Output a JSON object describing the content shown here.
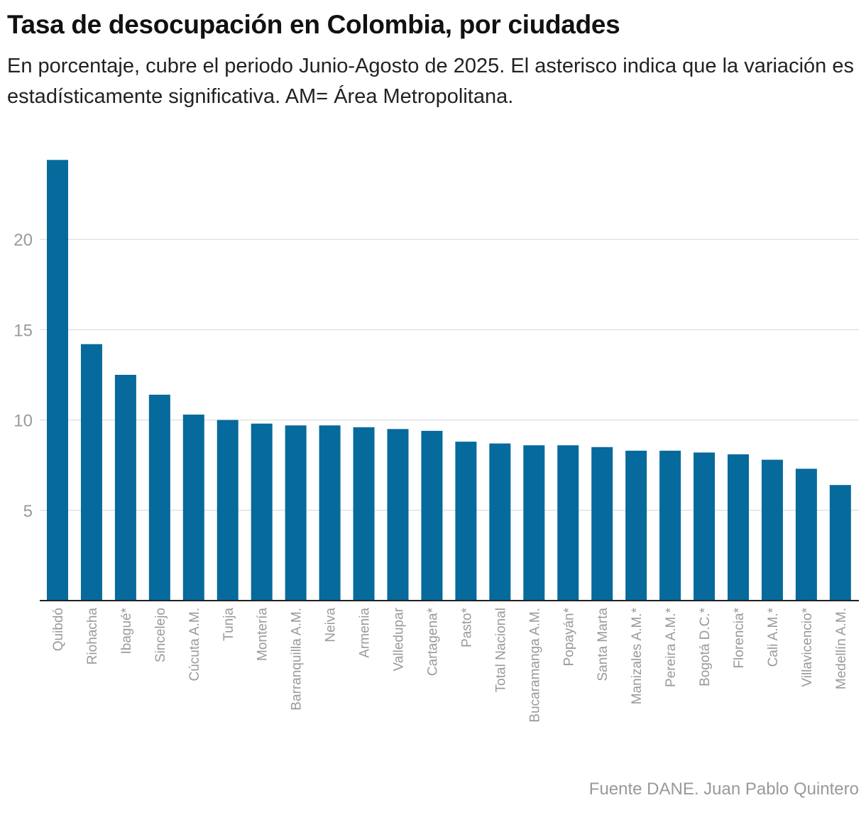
{
  "title": "Tasa de desocupación en Colombia, por ciudades",
  "subtitle": "En porcentaje, cubre el periodo Junio-Agosto de 2025. El asterisco indica que la variación es estadísticamente significativa. AM= Área Metropolitana.",
  "source": "Fuente DANE. Juan Pablo Quintero",
  "colors": {
    "bar": "#066a9c",
    "grid": "#e3e3e3",
    "axis": "#222222",
    "tick_text": "#9a9a9a"
  },
  "chart_data": {
    "type": "bar",
    "title": "Tasa de desocupación en Colombia, por ciudades",
    "xlabel": "",
    "ylabel": "",
    "ylim": [
      0,
      25
    ],
    "yticks": [
      5,
      10,
      15,
      20
    ],
    "grid": true,
    "categories": [
      "Quibdó",
      "Riohacha",
      "Ibagué*",
      "Sincelejo",
      "Cúcuta A.M.",
      "Tunja",
      "Montería",
      "Barranquilla A.M.",
      "Neiva",
      "Armenia",
      "Valledupar",
      "Cartagena*",
      "Pasto*",
      "Total Nacional",
      "Bucaramanga A.M.",
      "Popayán*",
      "Santa Marta",
      "Manizales A.M.*",
      "Pereira A.M.*",
      "Bogotá D.C.*",
      "Florencia*",
      "Cali A.M.*",
      "Villavicencio*",
      "Medellín A.M."
    ],
    "values": [
      24.4,
      14.2,
      12.5,
      11.4,
      10.3,
      10.0,
      9.8,
      9.7,
      9.7,
      9.6,
      9.5,
      9.4,
      8.8,
      8.7,
      8.6,
      8.6,
      8.5,
      8.3,
      8.3,
      8.2,
      8.1,
      7.8,
      7.3,
      6.4
    ]
  }
}
